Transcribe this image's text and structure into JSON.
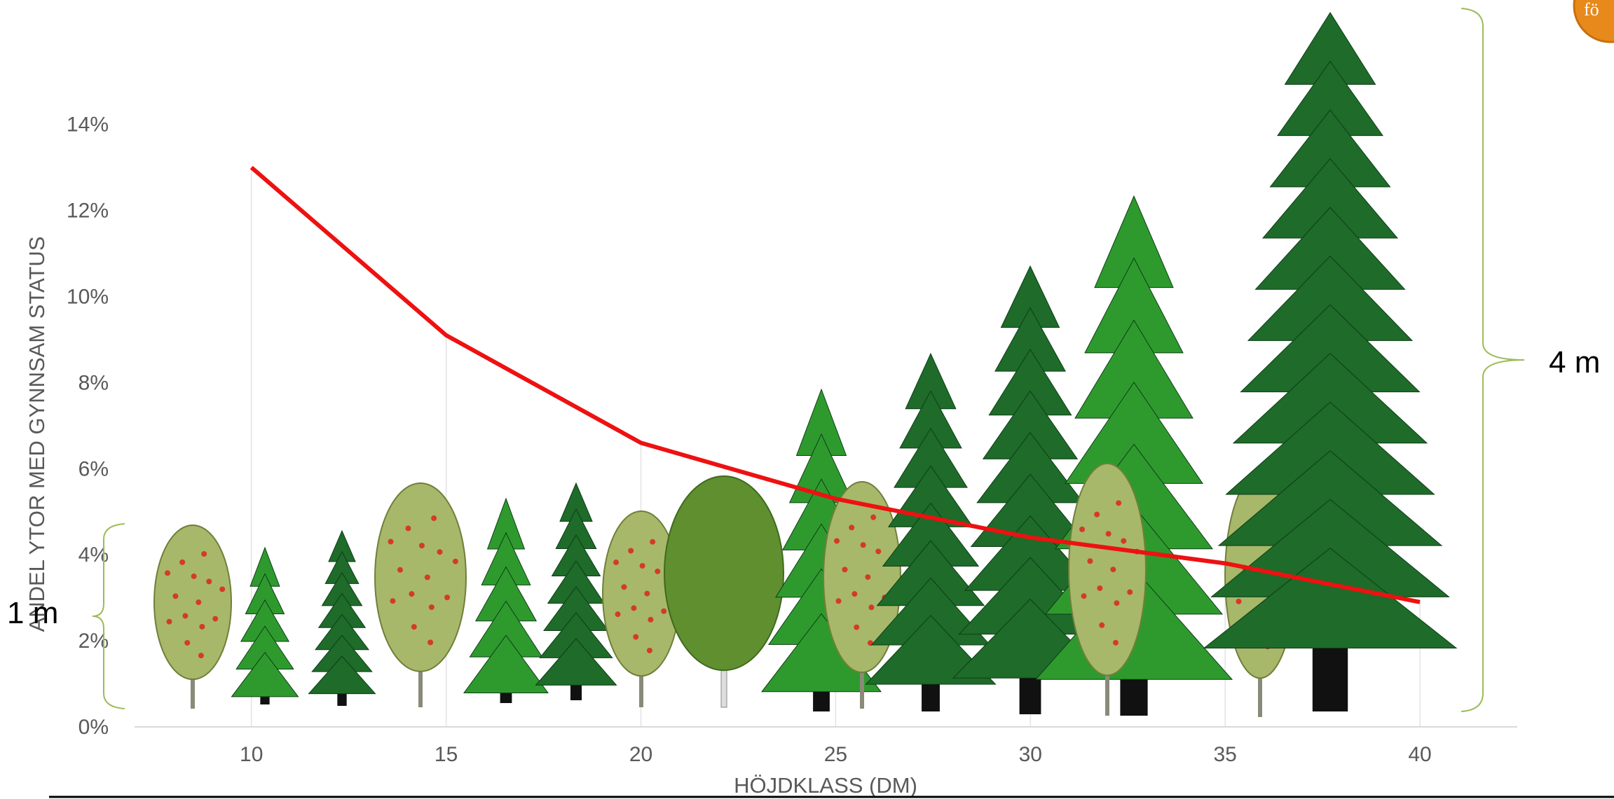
{
  "chart_data": {
    "type": "line",
    "title": "",
    "xlabel": "HÖJDKLASS (DM)",
    "ylabel": "ANDEL YTOR MED GYNNSAM STATUS",
    "x": [
      10,
      15,
      20,
      25,
      30,
      35,
      40
    ],
    "x_ticks": [
      "10",
      "15",
      "20",
      "25",
      "30",
      "35",
      "40"
    ],
    "y_ticks": [
      "0%",
      "2%",
      "4%",
      "6%",
      "8%",
      "10%",
      "12%",
      "14%"
    ],
    "xlim": [
      7,
      42.5
    ],
    "ylim": [
      0,
      16.5
    ],
    "grid": "vertical",
    "series": [
      {
        "values": [
          13.0,
          9.1,
          6.6,
          5.3,
          4.4,
          3.8,
          2.9
        ],
        "color": "#ee1111"
      }
    ]
  },
  "annotations": {
    "small_height": "1 m",
    "large_height": "4 m"
  },
  "colors": {
    "line": "#ee1111",
    "brace": "#9bbb59",
    "dark_spruce": "#1e6b2a",
    "bright_pine": "#2e9a2e",
    "rowan_leaf": "#a7b86a",
    "rowan_berry": "#d43a2a",
    "birch_leaf": "#5f8f2f",
    "accent_badge": "#e8891c"
  },
  "icons": [
    "tree-silhouette-icon",
    "logo-badge-icon"
  ]
}
